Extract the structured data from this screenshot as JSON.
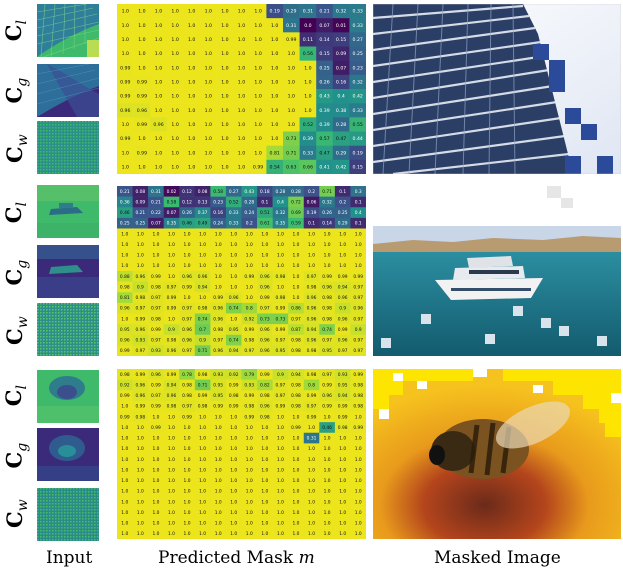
{
  "row_labels": [
    {
      "base": "C",
      "sub": "l"
    },
    {
      "base": "C",
      "sub": "g"
    },
    {
      "base": "C",
      "sub": "w"
    }
  ],
  "captions": {
    "input": "Input",
    "mask_prefix": "Predicted Mask ",
    "mask_symbol": "m",
    "masked": "Masked Image"
  },
  "colors": {
    "mask_high": "#e8e63a",
    "mask_low_teal": "#2a9a8b",
    "mask_purple": "#45196a",
    "input_green": "#3fb96a",
    "input_purple": "#3b2a7a",
    "sky": "#c9d6e8",
    "sea": "#1f6f80"
  },
  "panels": [
    {
      "id": "building",
      "mask_grid": [
        [
          "1.0",
          "1.0",
          "1.0",
          "1.0",
          "1.0",
          "1.0",
          "1.0",
          "1.0",
          "1.0",
          "0.19",
          "0.29",
          "0.31",
          "0.21",
          "0.32",
          "0.33"
        ],
        [
          "1.0",
          "1.0",
          "1.0",
          "1.0",
          "1.0",
          "1.0",
          "1.0",
          "1.0",
          "1.0",
          "1.0",
          "0.31",
          "0.0",
          "0.07",
          "0.01",
          "0.33"
        ],
        [
          "1.0",
          "1.0",
          "1.0",
          "1.0",
          "1.0",
          "1.0",
          "1.0",
          "1.0",
          "1.0",
          "1.0",
          "0.99",
          "0.11",
          "0.14",
          "0.15",
          "0.27"
        ],
        [
          "1.0",
          "1.0",
          "1.0",
          "1.0",
          "1.0",
          "1.0",
          "1.0",
          "1.0",
          "1.0",
          "1.0",
          "1.0",
          "0.56",
          "0.15",
          "0.09",
          "0.25"
        ],
        [
          "0.99",
          "1.0",
          "1.0",
          "1.0",
          "1.0",
          "1.0",
          "1.0",
          "1.0",
          "1.0",
          "1.0",
          "1.0",
          "1.0",
          "0.25",
          "0.07",
          "0.23"
        ],
        [
          "0.99",
          "0.99",
          "1.0",
          "1.0",
          "1.0",
          "1.0",
          "1.0",
          "1.0",
          "1.0",
          "1.0",
          "1.0",
          "1.0",
          "0.26",
          "0.16",
          "0.32"
        ],
        [
          "0.99",
          "0.99",
          "1.0",
          "1.0",
          "1.0",
          "1.0",
          "1.0",
          "1.0",
          "1.0",
          "1.0",
          "1.0",
          "1.0",
          "0.43",
          "0.4",
          "0.42"
        ],
        [
          "0.96",
          "0.96",
          "1.0",
          "1.0",
          "1.0",
          "1.0",
          "1.0",
          "1.0",
          "1.0",
          "1.0",
          "1.0",
          "1.0",
          "0.39",
          "0.38",
          "0.33"
        ],
        [
          "1.0",
          "0.99",
          "0.96",
          "1.0",
          "1.0",
          "1.0",
          "1.0",
          "1.0",
          "1.0",
          "1.0",
          "1.0",
          "0.52",
          "0.39",
          "0.28",
          "0.55"
        ],
        [
          "0.99",
          "1.0",
          "1.0",
          "1.0",
          "1.0",
          "1.0",
          "1.0",
          "1.0",
          "1.0",
          "1.0",
          "0.73",
          "0.39",
          "0.57",
          "0.47",
          "0.44"
        ],
        [
          "1.0",
          "0.99",
          "1.0",
          "1.0",
          "1.0",
          "1.0",
          "1.0",
          "1.0",
          "1.0",
          "0.81",
          "0.71",
          "0.33",
          "0.47",
          "0.29",
          "0.19"
        ],
        [
          "1.0",
          "1.0",
          "1.0",
          "1.0",
          "1.0",
          "1.0",
          "1.0",
          "1.0",
          "0.99",
          "0.54",
          "0.63",
          "0.66",
          "0.41",
          "0.42",
          "0.15"
        ]
      ]
    },
    {
      "id": "boat",
      "mask_grid": [
        [
          "0.21",
          "0.08",
          "0.31",
          "0.02",
          "0.12",
          "0.08",
          "0.58",
          "0.27",
          "0.43",
          "0.18",
          "0.28",
          "0.28",
          "0.2",
          "0.71",
          "0.1",
          "0.3"
        ],
        [
          "0.36",
          "0.09",
          "0.21",
          "0.58",
          "0.12",
          "0.13",
          "0.23",
          "0.52",
          "0.28",
          "0.1",
          "0.4",
          "0.72",
          "0.06",
          "0.32",
          "0.2",
          "0.1"
        ],
        [
          "0.46",
          "0.21",
          "0.22",
          "0.07",
          "0.26",
          "0.37",
          "0.16",
          "0.33",
          "0.24",
          "0.51",
          "0.32",
          "0.69",
          "0.19",
          "0.26",
          "0.25",
          "0.4"
        ],
        [
          "0.25",
          "0.25",
          "0.07",
          "0.35",
          "0.46",
          "0.49",
          "0.24",
          "0.33",
          "0.2",
          "0.61",
          "0.35",
          "0.59",
          "0.1",
          "0.14",
          "0.29",
          "0.1"
        ],
        [
          "1.0",
          "1.0",
          "1.0",
          "1.0",
          "1.0",
          "1.0",
          "1.0",
          "1.0",
          "1.0",
          "1.0",
          "1.0",
          "1.0",
          "1.0",
          "1.0",
          "1.0",
          "1.0"
        ],
        [
          "1.0",
          "1.0",
          "1.0",
          "1.0",
          "1.0",
          "1.0",
          "1.0",
          "1.0",
          "1.0",
          "1.0",
          "1.0",
          "1.0",
          "1.0",
          "1.0",
          "1.0",
          "1.0"
        ],
        [
          "1.0",
          "1.0",
          "1.0",
          "1.0",
          "1.0",
          "1.0",
          "1.0",
          "1.0",
          "1.0",
          "1.0",
          "1.0",
          "1.0",
          "1.0",
          "1.0",
          "1.0",
          "1.0"
        ],
        [
          "1.0",
          "1.0",
          "1.0",
          "1.0",
          "1.0",
          "1.0",
          "1.0",
          "1.0",
          "1.0",
          "1.0",
          "1.0",
          "1.0",
          "1.0",
          "1.0",
          "1.0",
          "1.0"
        ],
        [
          "0.88",
          "0.96",
          "0.99",
          "1.0",
          "0.96",
          "0.96",
          "1.0",
          "1.0",
          "0.99",
          "0.96",
          "0.98",
          "1.0",
          "0.97",
          "0.99",
          "0.99",
          "0.99"
        ],
        [
          "0.98",
          "0.9",
          "0.98",
          "0.97",
          "0.99",
          "0.94",
          "1.0",
          "1.0",
          "1.0",
          "0.96",
          "1.0",
          "1.0",
          "0.98",
          "0.96",
          "0.94",
          "0.97"
        ],
        [
          "0.81",
          "0.98",
          "0.97",
          "0.99",
          "1.0",
          "1.0",
          "0.99",
          "0.96",
          "1.0",
          "0.99",
          "0.98",
          "1.0",
          "0.96",
          "0.98",
          "0.96",
          "0.97"
        ],
        [
          "0.96",
          "0.97",
          "0.97",
          "0.99",
          "0.97",
          "0.98",
          "0.96",
          "0.74",
          "0.8",
          "0.97",
          "0.99",
          "0.86",
          "0.96",
          "0.98",
          "0.9",
          "0.96"
        ],
        [
          "1.0",
          "0.99",
          "0.98",
          "1.0",
          "0.97",
          "0.74",
          "0.96",
          "1.0",
          "0.92",
          "0.73",
          "0.73",
          "0.97",
          "0.96",
          "0.98",
          "0.96",
          "0.97"
        ],
        [
          "0.95",
          "0.96",
          "0.99",
          "0.9",
          "0.96",
          "0.7",
          "0.98",
          "0.95",
          "0.99",
          "0.96",
          "0.99",
          "0.87",
          "0.94",
          "0.74",
          "0.99",
          "0.9"
        ],
        [
          "0.96",
          "0.93",
          "0.97",
          "0.98",
          "0.96",
          "0.9",
          "0.97",
          "0.74",
          "0.98",
          "0.96",
          "0.97",
          "0.98",
          "0.96",
          "0.97",
          "0.96",
          "0.97"
        ],
        [
          "0.99",
          "0.97",
          "0.93",
          "0.96",
          "0.97",
          "0.71",
          "0.96",
          "0.94",
          "0.97",
          "0.96",
          "0.95",
          "0.98",
          "0.98",
          "0.95",
          "0.97",
          "0.97"
        ]
      ]
    },
    {
      "id": "bee",
      "mask_grid": [
        [
          "0.98",
          "0.99",
          "0.96",
          "0.99",
          "0.78",
          "0.98",
          "0.93",
          "0.92",
          "0.79",
          "0.99",
          "0.9",
          "0.94",
          "0.98",
          "0.97",
          "0.93",
          "0.99"
        ],
        [
          "0.92",
          "0.96",
          "0.99",
          "0.94",
          "0.98",
          "0.71",
          "0.95",
          "0.99",
          "0.93",
          "0.82",
          "0.97",
          "0.98",
          "0.8",
          "0.99",
          "0.95",
          "0.98"
        ],
        [
          "0.99",
          "0.96",
          "0.97",
          "0.96",
          "0.98",
          "0.99",
          "0.95",
          "0.98",
          "0.99",
          "0.98",
          "0.97",
          "0.98",
          "0.99",
          "0.96",
          "0.94",
          "0.98"
        ],
        [
          "1.0",
          "0.99",
          "0.99",
          "0.98",
          "0.97",
          "0.98",
          "0.99",
          "0.99",
          "0.98",
          "0.96",
          "0.99",
          "0.98",
          "0.97",
          "0.99",
          "0.99",
          "0.98"
        ],
        [
          "0.99",
          "0.98",
          "1.0",
          "1.0",
          "0.99",
          "1.0",
          "1.0",
          "1.0",
          "0.99",
          "0.98",
          "1.0",
          "1.0",
          "0.99",
          "1.0",
          "0.99",
          "1.0"
        ],
        [
          "1.0",
          "1.0",
          "0.99",
          "1.0",
          "1.0",
          "1.0",
          "1.0",
          "1.0",
          "1.0",
          "1.0",
          "1.0",
          "0.99",
          "1.0",
          "0.46",
          "0.98",
          "0.99"
        ],
        [
          "1.0",
          "1.0",
          "1.0",
          "1.0",
          "1.0",
          "1.0",
          "1.0",
          "1.0",
          "1.0",
          "1.0",
          "1.0",
          "1.0",
          "0.31",
          "1.0",
          "1.0",
          "1.0"
        ],
        [
          "1.0",
          "1.0",
          "1.0",
          "1.0",
          "1.0",
          "1.0",
          "1.0",
          "1.0",
          "1.0",
          "1.0",
          "1.0",
          "1.0",
          "1.0",
          "1.0",
          "1.0",
          "1.0"
        ],
        [
          "1.0",
          "1.0",
          "1.0",
          "1.0",
          "1.0",
          "1.0",
          "1.0",
          "1.0",
          "1.0",
          "1.0",
          "1.0",
          "1.0",
          "1.0",
          "1.0",
          "1.0",
          "1.0"
        ],
        [
          "1.0",
          "1.0",
          "1.0",
          "1.0",
          "1.0",
          "1.0",
          "1.0",
          "1.0",
          "1.0",
          "1.0",
          "1.0",
          "1.0",
          "1.0",
          "1.0",
          "1.0",
          "1.0"
        ],
        [
          "1.0",
          "1.0",
          "1.0",
          "1.0",
          "1.0",
          "1.0",
          "1.0",
          "1.0",
          "1.0",
          "1.0",
          "1.0",
          "1.0",
          "1.0",
          "1.0",
          "1.0",
          "1.0"
        ],
        [
          "1.0",
          "1.0",
          "1.0",
          "1.0",
          "1.0",
          "1.0",
          "1.0",
          "1.0",
          "1.0",
          "1.0",
          "1.0",
          "1.0",
          "1.0",
          "1.0",
          "1.0",
          "1.0"
        ],
        [
          "1.0",
          "1.0",
          "1.0",
          "1.0",
          "1.0",
          "1.0",
          "1.0",
          "1.0",
          "1.0",
          "1.0",
          "1.0",
          "1.0",
          "1.0",
          "1.0",
          "1.0",
          "1.0"
        ],
        [
          "1.0",
          "1.0",
          "1.0",
          "1.0",
          "1.0",
          "1.0",
          "1.0",
          "1.0",
          "1.0",
          "1.0",
          "1.0",
          "1.0",
          "1.0",
          "1.0",
          "1.0",
          "1.0"
        ],
        [
          "1.0",
          "1.0",
          "1.0",
          "1.0",
          "1.0",
          "1.0",
          "1.0",
          "1.0",
          "1.0",
          "1.0",
          "1.0",
          "1.0",
          "1.0",
          "1.0",
          "1.0",
          "1.0"
        ],
        [
          "1.0",
          "1.0",
          "1.0",
          "1.0",
          "1.0",
          "1.0",
          "1.0",
          "1.0",
          "1.0",
          "1.0",
          "1.0",
          "1.0",
          "1.0",
          "1.0",
          "1.0",
          "1.0"
        ]
      ]
    }
  ]
}
